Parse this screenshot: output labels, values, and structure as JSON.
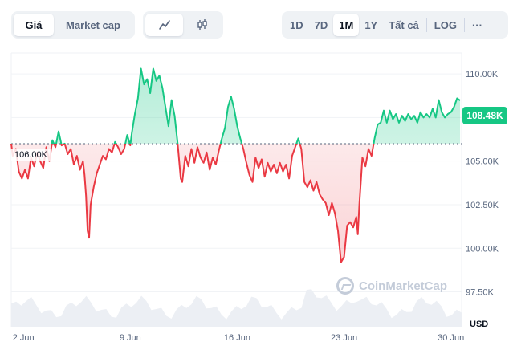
{
  "toolbar": {
    "metric_tabs": [
      "Giá",
      "Market cap"
    ],
    "metric_active": 0,
    "chart_type_icons": [
      "line-chart-icon",
      "candlestick-icon"
    ],
    "chart_type_active": 0,
    "range_tabs": [
      "1D",
      "7D",
      "1M",
      "1Y",
      "Tất cả"
    ],
    "range_active": 2,
    "log_label": "LOG",
    "more_label": "···"
  },
  "current_price_label": "108.48K",
  "reference_label": "106.00K",
  "watermark": "CoinMarketCap",
  "currency_label": "USD",
  "colors": {
    "up": "#16c784",
    "down": "#ea3943",
    "volume": "#eceff4"
  },
  "chart_data": {
    "type": "line",
    "title": "",
    "ylabel": "",
    "xlabel": "",
    "y_ticks": [
      97500,
      100000,
      102500,
      105000,
      107500,
      110000
    ],
    "y_tick_labels": [
      "97.50K",
      "100.00K",
      "102.50K",
      "105.00K",
      "107.50K",
      "110.00K"
    ],
    "x_ticks": [
      {
        "label": "2 Jun",
        "day": 2
      },
      {
        "label": "9 Jun",
        "day": 9
      },
      {
        "label": "16 Jun",
        "day": 16
      },
      {
        "label": "23 Jun",
        "day": 23
      },
      {
        "label": "30 Jun",
        "day": 30
      }
    ],
    "reference_value": 106000,
    "x_range_days": [
      1.2,
      30.7
    ],
    "ylim": [
      95500,
      111200
    ],
    "series": [
      {
        "values": [
          [
            1.2,
            106000
          ],
          [
            1.3,
            105300
          ],
          [
            1.5,
            105700
          ],
          [
            1.7,
            104400
          ],
          [
            1.9,
            104000
          ],
          [
            2.1,
            104500
          ],
          [
            2.3,
            104000
          ],
          [
            2.5,
            105200
          ],
          [
            2.7,
            104700
          ],
          [
            2.9,
            105500
          ],
          [
            3.1,
            105000
          ],
          [
            3.3,
            104600
          ],
          [
            3.5,
            105800
          ],
          [
            3.7,
            105000
          ],
          [
            3.9,
            106200
          ],
          [
            4.1,
            105800
          ],
          [
            4.3,
            106700
          ],
          [
            4.5,
            105900
          ],
          [
            4.7,
            106000
          ],
          [
            4.9,
            105400
          ],
          [
            5.1,
            105700
          ],
          [
            5.3,
            104800
          ],
          [
            5.5,
            105300
          ],
          [
            5.7,
            104500
          ],
          [
            5.9,
            105000
          ],
          [
            6.0,
            104200
          ],
          [
            6.1,
            103000
          ],
          [
            6.2,
            101000
          ],
          [
            6.3,
            100600
          ],
          [
            6.4,
            102500
          ],
          [
            6.6,
            103500
          ],
          [
            6.8,
            104300
          ],
          [
            7.0,
            104800
          ],
          [
            7.2,
            105300
          ],
          [
            7.4,
            105100
          ],
          [
            7.6,
            105700
          ],
          [
            7.8,
            105500
          ],
          [
            8.0,
            106100
          ],
          [
            8.2,
            105800
          ],
          [
            8.4,
            105400
          ],
          [
            8.6,
            105700
          ],
          [
            8.8,
            106500
          ],
          [
            9.0,
            105900
          ],
          [
            9.1,
            106600
          ],
          [
            9.3,
            107700
          ],
          [
            9.5,
            108600
          ],
          [
            9.7,
            110300
          ],
          [
            9.9,
            109400
          ],
          [
            10.1,
            109700
          ],
          [
            10.3,
            108900
          ],
          [
            10.5,
            110300
          ],
          [
            10.7,
            109600
          ],
          [
            10.9,
            109900
          ],
          [
            11.1,
            109200
          ],
          [
            11.3,
            108100
          ],
          [
            11.5,
            107000
          ],
          [
            11.7,
            108500
          ],
          [
            11.9,
            107600
          ],
          [
            12.1,
            106000
          ],
          [
            12.3,
            104000
          ],
          [
            12.4,
            103800
          ],
          [
            12.6,
            105300
          ],
          [
            12.8,
            104700
          ],
          [
            13.0,
            105700
          ],
          [
            13.2,
            104900
          ],
          [
            13.4,
            105800
          ],
          [
            13.6,
            105200
          ],
          [
            13.8,
            104900
          ],
          [
            14.0,
            105500
          ],
          [
            14.2,
            104500
          ],
          [
            14.4,
            105200
          ],
          [
            14.6,
            104800
          ],
          [
            14.8,
            105600
          ],
          [
            15.0,
            106300
          ],
          [
            15.2,
            106900
          ],
          [
            15.4,
            108100
          ],
          [
            15.6,
            108700
          ],
          [
            15.8,
            108000
          ],
          [
            16.0,
            107000
          ],
          [
            16.2,
            106300
          ],
          [
            16.4,
            105700
          ],
          [
            16.6,
            104900
          ],
          [
            16.8,
            104200
          ],
          [
            17.0,
            103800
          ],
          [
            17.2,
            105200
          ],
          [
            17.4,
            104600
          ],
          [
            17.6,
            105100
          ],
          [
            17.8,
            104100
          ],
          [
            18.0,
            104900
          ],
          [
            18.2,
            104400
          ],
          [
            18.4,
            104800
          ],
          [
            18.6,
            104300
          ],
          [
            18.8,
            104900
          ],
          [
            19.0,
            104400
          ],
          [
            19.2,
            104800
          ],
          [
            19.4,
            104000
          ],
          [
            19.6,
            105300
          ],
          [
            19.8,
            105800
          ],
          [
            20.0,
            106300
          ],
          [
            20.2,
            105700
          ],
          [
            20.4,
            103800
          ],
          [
            20.6,
            103500
          ],
          [
            20.8,
            103900
          ],
          [
            21.0,
            103300
          ],
          [
            21.2,
            103800
          ],
          [
            21.4,
            103100
          ],
          [
            21.6,
            102800
          ],
          [
            21.8,
            102600
          ],
          [
            22.0,
            101900
          ],
          [
            22.2,
            102600
          ],
          [
            22.4,
            102000
          ],
          [
            22.6,
            101000
          ],
          [
            22.8,
            99200
          ],
          [
            23.0,
            99500
          ],
          [
            23.2,
            101300
          ],
          [
            23.4,
            101500
          ],
          [
            23.6,
            101200
          ],
          [
            23.8,
            101800
          ],
          [
            23.9,
            100800
          ],
          [
            24.0,
            102500
          ],
          [
            24.2,
            105200
          ],
          [
            24.4,
            104700
          ],
          [
            24.6,
            105700
          ],
          [
            24.8,
            105300
          ],
          [
            25.0,
            106300
          ],
          [
            25.2,
            107100
          ],
          [
            25.4,
            107200
          ],
          [
            25.6,
            107900
          ],
          [
            25.8,
            107200
          ],
          [
            26.0,
            107900
          ],
          [
            26.2,
            107400
          ],
          [
            26.4,
            107700
          ],
          [
            26.6,
            107200
          ],
          [
            26.8,
            107600
          ],
          [
            27.0,
            107300
          ],
          [
            27.2,
            107700
          ],
          [
            27.4,
            107400
          ],
          [
            27.6,
            107600
          ],
          [
            27.8,
            107200
          ],
          [
            28.0,
            107800
          ],
          [
            28.2,
            107500
          ],
          [
            28.4,
            107700
          ],
          [
            28.6,
            107500
          ],
          [
            28.8,
            108000
          ],
          [
            29.0,
            107500
          ],
          [
            29.2,
            108500
          ],
          [
            29.4,
            107800
          ],
          [
            29.6,
            107500
          ],
          [
            29.8,
            107700
          ],
          [
            30.0,
            107800
          ],
          [
            30.2,
            108100
          ],
          [
            30.4,
            108600
          ],
          [
            30.6,
            108480
          ]
        ]
      }
    ]
  }
}
